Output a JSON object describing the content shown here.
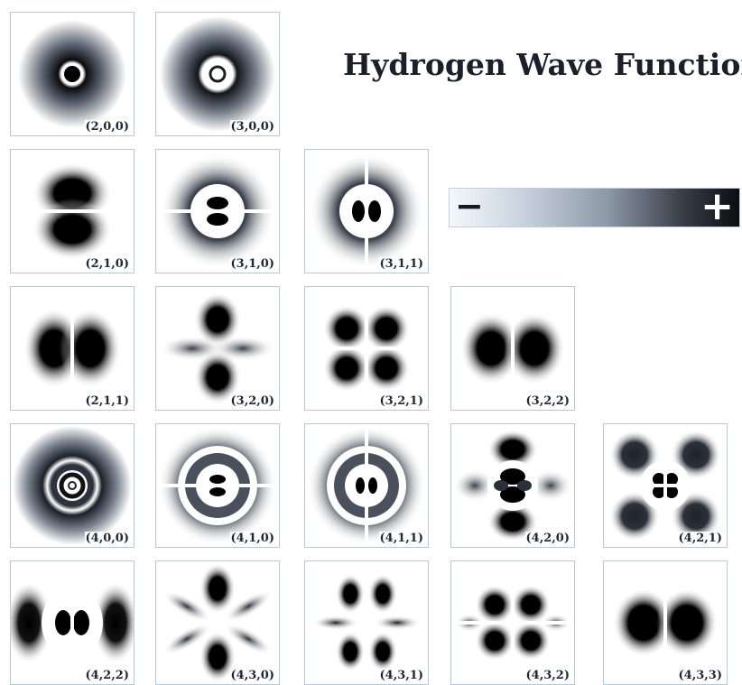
{
  "title": "Hydrogen Wave Function",
  "colorbar": {
    "negative_symbol": "−",
    "positive_symbol": "+",
    "gradient": [
      "#f4f8fc",
      "#0b0d12"
    ]
  },
  "colors": {
    "lobe": "#000000",
    "background": "#ffffff",
    "frame": "#b7c7d8"
  },
  "orbitals": [
    {
      "label": "(2,0,0)",
      "n": 2,
      "l": 0,
      "m": 0
    },
    {
      "label": "(3,0,0)",
      "n": 3,
      "l": 0,
      "m": 0
    },
    {
      "label": "(2,1,0)",
      "n": 2,
      "l": 1,
      "m": 0
    },
    {
      "label": "(3,1,0)",
      "n": 3,
      "l": 1,
      "m": 0
    },
    {
      "label": "(3,1,1)",
      "n": 3,
      "l": 1,
      "m": 1
    },
    {
      "label": "(2,1,1)",
      "n": 2,
      "l": 1,
      "m": 1
    },
    {
      "label": "(3,2,0)",
      "n": 3,
      "l": 2,
      "m": 0
    },
    {
      "label": "(3,2,1)",
      "n": 3,
      "l": 2,
      "m": 1
    },
    {
      "label": "(3,2,2)",
      "n": 3,
      "l": 2,
      "m": 2
    },
    {
      "label": "(4,0,0)",
      "n": 4,
      "l": 0,
      "m": 0
    },
    {
      "label": "(4,1,0)",
      "n": 4,
      "l": 1,
      "m": 0
    },
    {
      "label": "(4,1,1)",
      "n": 4,
      "l": 1,
      "m": 1
    },
    {
      "label": "(4,2,0)",
      "n": 4,
      "l": 2,
      "m": 0
    },
    {
      "label": "(4,2,1)",
      "n": 4,
      "l": 2,
      "m": 1
    },
    {
      "label": "(4,2,2)",
      "n": 4,
      "l": 2,
      "m": 2
    },
    {
      "label": "(4,3,0)",
      "n": 4,
      "l": 3,
      "m": 0
    },
    {
      "label": "(4,3,1)",
      "n": 4,
      "l": 3,
      "m": 1
    },
    {
      "label": "(4,3,2)",
      "n": 4,
      "l": 3,
      "m": 2
    },
    {
      "label": "(4,3,3)",
      "n": 4,
      "l": 3,
      "m": 3
    }
  ]
}
